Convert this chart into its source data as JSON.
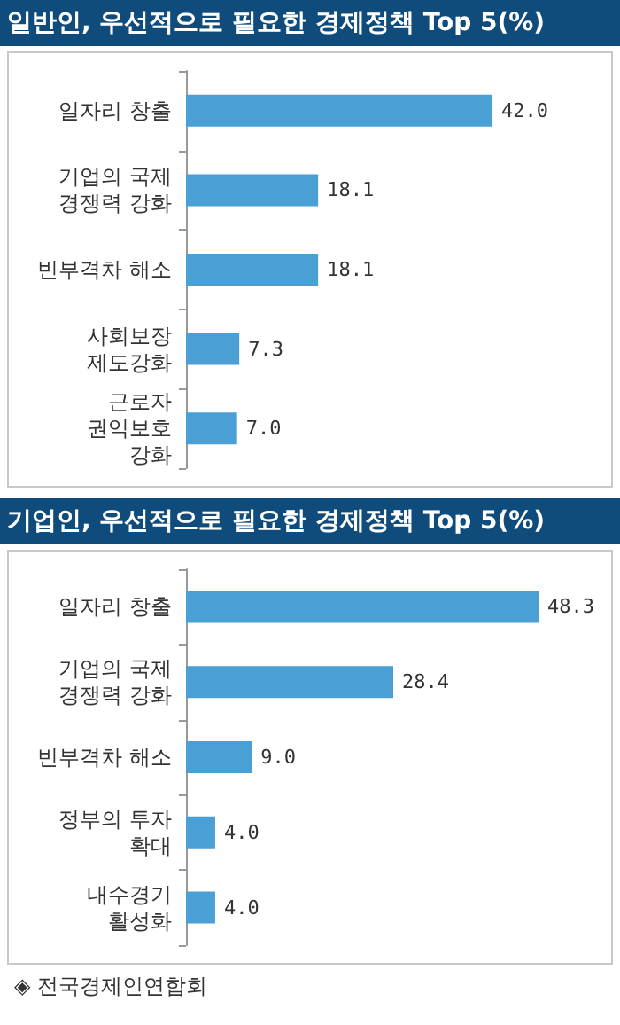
{
  "chart_data": [
    {
      "type": "bar",
      "orientation": "horizontal",
      "title": "일반인, 우선적으로 필요한 경제정책 Top 5(%)",
      "categories": [
        "일자리 창출",
        "기업의 국제\n경쟁력 강화",
        "빈부격차 해소",
        "사회보장\n제도강화",
        "근로자\n권익보호\n강화"
      ],
      "values": [
        42.0,
        18.1,
        18.1,
        7.3,
        7.0
      ],
      "value_labels": [
        "42.0",
        "18.1",
        "18.1",
        "7.3",
        "7.0"
      ],
      "color": "#4a9fd4",
      "tick_labels": "y"
    },
    {
      "type": "bar",
      "orientation": "horizontal",
      "title": "기업인, 우선적으로 필요한 경제정책 Top 5(%)",
      "categories": [
        "일자리 창출",
        "기업의 국제\n경쟁력 강화",
        "빈부격차 해소",
        "정부의 투자\n확대",
        "내수경기\n활성화"
      ],
      "values": [
        48.3,
        28.4,
        9.0,
        4.0,
        4.0
      ],
      "value_labels": [
        "48.3",
        "28.4",
        "9.0",
        "4.0",
        "4.0"
      ],
      "color": "#4a9fd4",
      "tick_labels": "y",
      "annotations": [
        "◈ 전국경제인연합회"
      ]
    }
  ]
}
